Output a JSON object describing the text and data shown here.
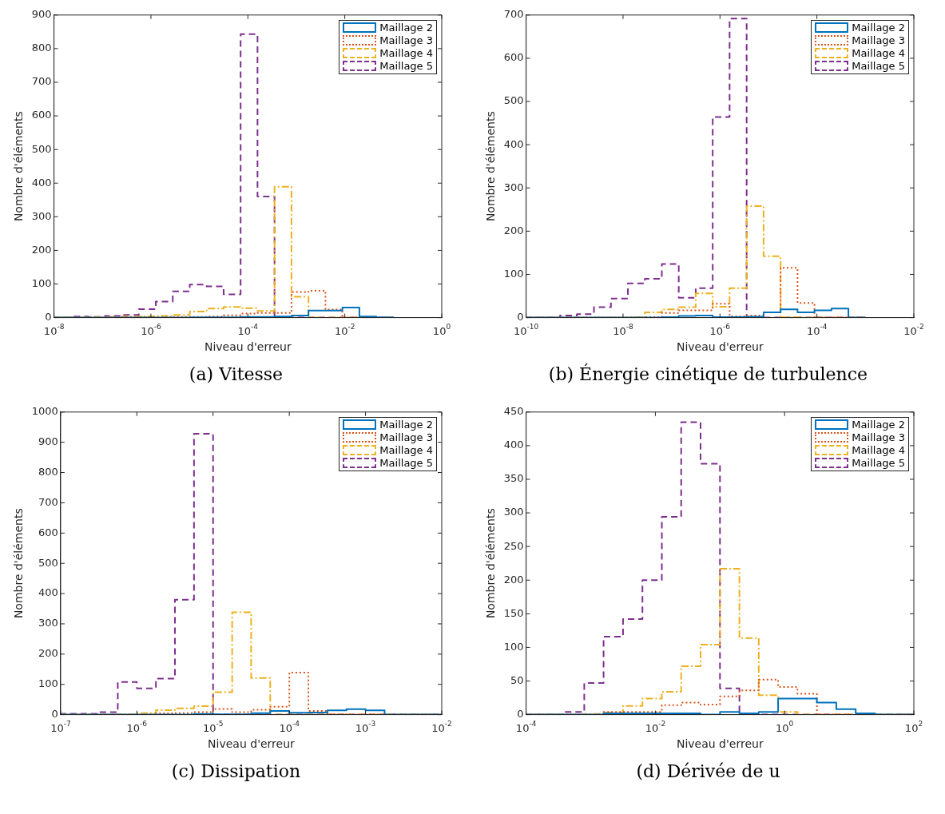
{
  "chart_data": [
    {
      "type": "histogram",
      "title": "(a) Vitesse",
      "xlabel": "Niveau d'erreur",
      "ylabel": "Nombre d'éléments",
      "log": "x",
      "legend": "top right",
      "xlim": [
        1e-08,
        1
      ],
      "xticks": [
        {
          "value": 1e-08,
          "label": "10$^{-8}$"
        },
        {
          "value": 1e-06,
          "label": "10$^{-6}$"
        },
        {
          "value": 0.0001,
          "label": "10$^{-4}$"
        },
        {
          "value": 0.01,
          "label": "10$^{-2}$"
        },
        {
          "value": 1,
          "label": "10$^{0}$"
        }
      ],
      "ylim": [
        0,
        900
      ],
      "yticks": [
        0,
        100,
        200,
        300,
        400,
        500,
        600,
        700,
        800,
        900
      ],
      "bins": [
        1e-08,
        2.24e-08,
        5.01e-08,
        1.12e-07,
        2.51e-07,
        5.62e-07,
        1.26e-06,
        2.82e-06,
        6.31e-06,
        1.41e-05,
        3.16e-05,
        7.08e-05,
        0.000158,
        0.000355,
        0.000794,
        0.00178,
        0.00398,
        0.00891,
        0.02,
        0.0447,
        0.1
      ],
      "series": [
        {
          "name": "Maillage 2",
          "color": "#0072bd",
          "line_style": "solid",
          "values": [
            0,
            0,
            0,
            0,
            0,
            0,
            0,
            0,
            1,
            1,
            1,
            2,
            2,
            3,
            6,
            21,
            21,
            30,
            3,
            1
          ]
        },
        {
          "name": "Maillage 3",
          "color": "#d95319",
          "line_style": "dotted",
          "values": [
            0,
            0,
            0,
            0,
            1,
            1,
            1,
            2,
            2,
            3,
            7,
            12,
            14,
            14,
            76,
            80,
            24,
            0,
            0,
            0
          ]
        },
        {
          "name": "Maillage 4",
          "color": "#edb120",
          "line_style": "dashdot",
          "values": [
            1,
            1,
            2,
            2,
            3,
            4,
            5,
            8,
            18,
            27,
            32,
            28,
            20,
            389,
            62,
            0,
            0,
            0,
            0,
            0
          ]
        },
        {
          "name": "Maillage 5",
          "color": "#7e2f8e",
          "line_style": "dashed",
          "values": [
            0,
            3,
            2,
            5,
            8,
            25,
            48,
            78,
            98,
            93,
            69,
            843,
            360,
            0,
            0,
            0,
            0,
            0,
            0,
            0
          ]
        }
      ]
    },
    {
      "type": "histogram",
      "title": "(b) Énergie cinétique de turbulence",
      "xlabel": "Niveau d'erreur",
      "ylabel": "Nombre d'éléments",
      "log": "x",
      "legend": "top right",
      "xlim": [
        1e-10,
        0.01
      ],
      "xticks": [
        {
          "value": 1e-10,
          "label": "10$^{-10}$"
        },
        {
          "value": 1e-08,
          "label": "10$^{-8}$"
        },
        {
          "value": 1e-06,
          "label": "10$^{-6}$"
        },
        {
          "value": 0.0001,
          "label": "10$^{-4}$"
        },
        {
          "value": 0.01,
          "label": "10$^{-2}$"
        }
      ],
      "ylim": [
        0,
        700
      ],
      "yticks": [
        0,
        100,
        200,
        300,
        400,
        500,
        600,
        700
      ],
      "bins": [
        1e-10,
        2.24e-10,
        5.01e-10,
        1.12e-09,
        2.51e-09,
        5.62e-09,
        1.26e-08,
        2.82e-08,
        6.31e-08,
        1.41e-07,
        3.16e-07,
        7.08e-07,
        1.58e-06,
        3.55e-06,
        7.94e-06,
        1.78e-05,
        3.98e-05,
        8.91e-05,
        0.0002,
        0.000447,
        0.001
      ],
      "series": [
        {
          "name": "Maillage 2",
          "color": "#0072bd",
          "line_style": "solid",
          "values": [
            0,
            0,
            0,
            0,
            0,
            0,
            0,
            0,
            1,
            4,
            5,
            1,
            1,
            2,
            12,
            19,
            12,
            17,
            21,
            0
          ]
        },
        {
          "name": "Maillage 3",
          "color": "#d95319",
          "line_style": "dotted",
          "values": [
            0,
            0,
            0,
            0,
            0,
            0,
            0,
            1,
            11,
            17,
            17,
            32,
            3,
            5,
            12,
            115,
            34,
            0,
            0,
            0
          ]
        },
        {
          "name": "Maillage 4",
          "color": "#edb120",
          "line_style": "dashdot",
          "values": [
            0,
            0,
            0,
            0,
            0,
            0,
            1,
            12,
            19,
            24,
            56,
            25,
            68,
            258,
            142,
            1,
            0,
            0,
            0,
            0
          ]
        },
        {
          "name": "Maillage 5",
          "color": "#7e2f8e",
          "line_style": "dashed",
          "values": [
            0,
            0,
            5,
            8,
            24,
            44,
            79,
            90,
            124,
            46,
            68,
            464,
            692,
            0,
            0,
            0,
            0,
            0,
            0,
            0
          ]
        }
      ]
    },
    {
      "type": "histogram",
      "title": "(c) Dissipation",
      "xlabel": "Niveau d'erreur",
      "ylabel": "Nombre d'éléments",
      "log": "x",
      "legend": "top right",
      "xlim": [
        1e-07,
        0.01
      ],
      "xticks": [
        {
          "value": 1e-07,
          "label": "10$^{-7}$"
        },
        {
          "value": 1e-06,
          "label": "10$^{-6}$"
        },
        {
          "value": 1e-05,
          "label": "10$^{-5}$"
        },
        {
          "value": 0.0001,
          "label": "10$^{-4}$"
        },
        {
          "value": 0.001,
          "label": "10$^{-3}$"
        },
        {
          "value": 0.01,
          "label": "10$^{-2}$"
        }
      ],
      "ylim": [
        0,
        1000
      ],
      "yticks": [
        0,
        100,
        200,
        300,
        400,
        500,
        600,
        700,
        800,
        900,
        1000
      ],
      "bins": [
        1e-07,
        1.78e-07,
        3.16e-07,
        5.62e-07,
        1e-06,
        1.78e-06,
        3.16e-06,
        5.62e-06,
        1e-05,
        1.78e-05,
        3.16e-05,
        5.62e-05,
        0.0001,
        0.000178,
        0.000316,
        0.000562,
        0.001,
        0.00178,
        0.00316,
        0.00562,
        0.01
      ],
      "series": [
        {
          "name": "Maillage 2",
          "color": "#0072bd",
          "line_style": "solid",
          "values": [
            0,
            0,
            0,
            0,
            0,
            0,
            0,
            2,
            1,
            1,
            5,
            12,
            6,
            7,
            14,
            18,
            14,
            0,
            0,
            0
          ]
        },
        {
          "name": "Maillage 3",
          "color": "#d95319",
          "line_style": "dotted",
          "values": [
            0,
            0,
            0,
            0,
            0,
            4,
            5,
            8,
            19,
            8,
            16,
            26,
            139,
            12,
            1,
            0,
            0,
            0,
            0,
            0
          ]
        },
        {
          "name": "Maillage 4",
          "color": "#edb120",
          "line_style": "dashdot",
          "values": [
            0,
            0,
            0,
            1,
            5,
            15,
            21,
            28,
            74,
            338,
            121,
            0,
            0,
            0,
            0,
            0,
            0,
            0,
            0,
            0
          ]
        },
        {
          "name": "Maillage 5",
          "color": "#7e2f8e",
          "line_style": "dashed",
          "values": [
            3,
            3,
            8,
            108,
            87,
            119,
            380,
            928,
            0,
            0,
            0,
            0,
            0,
            0,
            0,
            0,
            0,
            0,
            0,
            0
          ]
        }
      ]
    },
    {
      "type": "histogram",
      "title": "(d) Dérivée de u",
      "xlabel": "Niveau d'erreur",
      "ylabel": "Nombre d'éléments",
      "log": "x",
      "legend": "top right",
      "xlim": [
        0.0001,
        100
      ],
      "xticks": [
        {
          "value": 0.0001,
          "label": "10$^{-4}$"
        },
        {
          "value": 0.01,
          "label": "10$^{-2}$"
        },
        {
          "value": 1,
          "label": "10$^{0}$"
        },
        {
          "value": 100,
          "label": "10$^{2}$"
        }
      ],
      "ylim": [
        0,
        450
      ],
      "yticks": [
        0,
        50,
        100,
        150,
        200,
        250,
        300,
        350,
        400,
        450
      ],
      "bins": [
        0.0001,
        0.0002,
        0.000398,
        0.000794,
        0.00158,
        0.00316,
        0.00631,
        0.0126,
        0.0251,
        0.0501,
        0.1,
        0.2,
        0.398,
        0.794,
        1.58,
        3.16,
        6.31,
        12.6,
        25.1,
        50.1,
        100
      ],
      "series": [
        {
          "name": "Maillage 2",
          "color": "#0072bd",
          "line_style": "solid",
          "values": [
            0,
            0,
            0,
            0,
            2,
            2,
            2,
            2,
            2,
            0,
            4,
            2,
            4,
            24,
            24,
            18,
            8,
            2,
            0,
            0
          ]
        },
        {
          "name": "Maillage 3",
          "color": "#d95319",
          "line_style": "dotted",
          "values": [
            0,
            0,
            0,
            0,
            4,
            4,
            4,
            14,
            18,
            15,
            27,
            36,
            52,
            41,
            31,
            0,
            0,
            0,
            0,
            0
          ]
        },
        {
          "name": "Maillage 4",
          "color": "#edb120",
          "line_style": "dashdot",
          "values": [
            0,
            0,
            0,
            1,
            3,
            13,
            24,
            34,
            72,
            104,
            217,
            114,
            29,
            4,
            0,
            0,
            0,
            0,
            0,
            0
          ]
        },
        {
          "name": "Maillage 5",
          "color": "#7e2f8e",
          "line_style": "dashed",
          "values": [
            0,
            0,
            4,
            47,
            116,
            142,
            200,
            294,
            435,
            373,
            39,
            0,
            0,
            0,
            0,
            0,
            0,
            0,
            0,
            0
          ]
        }
      ]
    }
  ]
}
